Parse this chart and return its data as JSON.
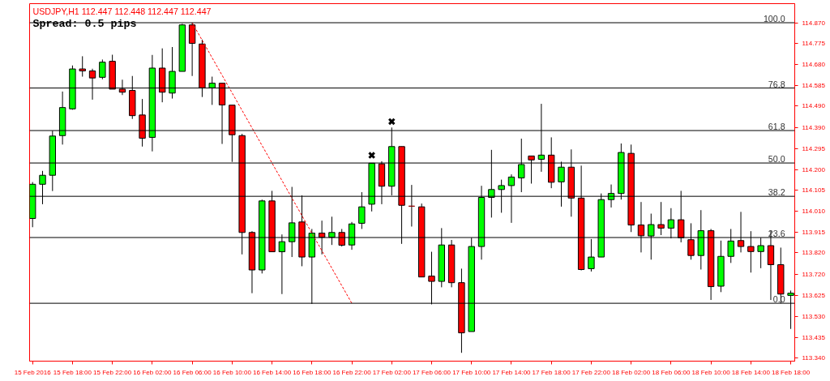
{
  "chart_data": {
    "type": "candlestick",
    "annotations": [
      "USDJPY,H1  112.447 112.448 112.447 112.447",
      "Spread: 0.5 pips",
      {
        "text": "100.0",
        "x": "2016-02-18T18:00",
        "y": 114.87
      },
      {
        "text": "76.8",
        "x": "2016-02-18T18:00",
        "y": 114.572
      },
      {
        "text": "61.8",
        "x": "2016-02-18T18:00",
        "y": 114.378
      },
      {
        "text": "50.0",
        "x": "2016-02-18T18:00",
        "y": 114.23
      },
      {
        "text": "38.2",
        "x": "2016-02-18T18:00",
        "y": 114.078
      },
      {
        "text": "23.6",
        "x": "2016-02-18T18:00",
        "y": 113.89
      },
      {
        "text": "0.0",
        "x": "2016-02-18T18:00",
        "y": 113.59
      }
    ],
    "x": [
      "2016-02-15T14:00",
      "2016-02-15T15:00",
      "2016-02-15T16:00",
      "2016-02-15T17:00",
      "2016-02-15T18:00",
      "2016-02-15T19:00",
      "2016-02-15T20:00",
      "2016-02-15T21:00",
      "2016-02-15T22:00",
      "2016-02-15T23:00",
      "2016-02-16T00:00",
      "2016-02-16T01:00",
      "2016-02-16T02:00",
      "2016-02-16T03:00",
      "2016-02-16T04:00",
      "2016-02-16T05:00",
      "2016-02-16T06:00",
      "2016-02-16T07:00",
      "2016-02-16T08:00",
      "2016-02-16T09:00",
      "2016-02-16T10:00",
      "2016-02-16T11:00",
      "2016-02-16T12:00",
      "2016-02-16T13:00",
      "2016-02-16T14:00",
      "2016-02-16T15:00",
      "2016-02-16T16:00",
      "2016-02-16T17:00",
      "2016-02-16T18:00",
      "2016-02-16T19:00",
      "2016-02-16T20:00",
      "2016-02-16T21:00",
      "2016-02-16T22:00",
      "2016-02-16T23:00",
      "2016-02-17T00:00",
      "2016-02-17T01:00",
      "2016-02-17T02:00",
      "2016-02-17T03:00",
      "2016-02-17T04:00",
      "2016-02-17T05:00",
      "2016-02-17T06:00",
      "2016-02-17T07:00",
      "2016-02-17T08:00",
      "2016-02-17T09:00",
      "2016-02-17T10:00",
      "2016-02-17T11:00",
      "2016-02-17T12:00",
      "2016-02-17T13:00",
      "2016-02-17T14:00",
      "2016-02-17T15:00",
      "2016-02-17T16:00",
      "2016-02-17T17:00",
      "2016-02-17T18:00",
      "2016-02-17T19:00",
      "2016-02-17T20:00",
      "2016-02-17T21:00",
      "2016-02-17T22:00",
      "2016-02-17T23:00",
      "2016-02-18T00:00",
      "2016-02-18T01:00",
      "2016-02-18T02:00",
      "2016-02-18T03:00",
      "2016-02-18T04:00",
      "2016-02-18T05:00",
      "2016-02-18T06:00",
      "2016-02-18T07:00",
      "2016-02-18T08:00",
      "2016-02-18T09:00",
      "2016-02-18T10:00",
      "2016-02-18T11:00",
      "2016-02-18T12:00",
      "2016-02-18T13:00",
      "2016-02-18T14:00",
      "2016-02-18T15:00",
      "2016-02-18T16:00",
      "2016-02-18T17:00",
      "2016-02-18T18:00"
    ],
    "ohlc": [
      [
        113.977,
        114.143,
        113.937,
        114.133
      ],
      [
        114.133,
        114.194,
        114.042,
        114.174
      ],
      [
        114.174,
        114.377,
        114.102,
        114.353
      ],
      [
        114.355,
        114.556,
        114.314,
        114.483
      ],
      [
        114.477,
        114.675,
        114.473,
        114.659
      ],
      [
        114.659,
        114.717,
        114.624,
        114.65
      ],
      [
        114.65,
        114.66,
        114.519,
        114.618
      ],
      [
        114.621,
        114.702,
        114.612,
        114.69
      ],
      [
        114.694,
        114.724,
        114.567,
        114.567
      ],
      [
        114.567,
        114.61,
        114.54,
        114.553
      ],
      [
        114.561,
        114.627,
        114.431,
        114.446
      ],
      [
        114.449,
        114.522,
        114.305,
        114.343
      ],
      [
        114.347,
        114.723,
        114.283,
        114.663
      ],
      [
        114.663,
        114.753,
        114.507,
        114.553
      ],
      [
        114.549,
        114.759,
        114.524,
        114.648
      ],
      [
        114.648,
        114.865,
        114.648,
        114.86
      ],
      [
        114.86,
        114.87,
        114.627,
        114.776
      ],
      [
        114.773,
        114.793,
        114.531,
        114.573
      ],
      [
        114.573,
        114.624,
        114.495,
        114.594
      ],
      [
        114.594,
        114.594,
        114.317,
        114.495
      ],
      [
        114.494,
        114.494,
        114.235,
        114.359
      ],
      [
        114.355,
        114.363,
        113.813,
        113.913
      ],
      [
        113.913,
        113.919,
        113.636,
        113.742
      ],
      [
        113.742,
        114.063,
        113.726,
        114.057
      ],
      [
        114.057,
        114.103,
        113.825,
        113.825
      ],
      [
        113.825,
        113.904,
        113.632,
        113.871
      ],
      [
        113.871,
        114.121,
        113.801,
        113.957
      ],
      [
        113.961,
        114.082,
        113.759,
        113.801
      ],
      [
        113.801,
        113.929,
        113.587,
        113.91
      ],
      [
        113.91,
        113.967,
        113.813,
        113.891
      ],
      [
        113.891,
        113.985,
        113.856,
        113.913
      ],
      [
        113.913,
        113.929,
        113.849,
        113.855
      ],
      [
        113.856,
        113.961,
        113.834,
        113.952
      ],
      [
        113.955,
        114.097,
        113.929,
        114.03
      ],
      [
        114.042,
        114.229,
        114.009,
        114.229
      ],
      [
        114.226,
        114.238,
        114.042,
        114.124
      ],
      [
        114.124,
        114.392,
        114.082,
        114.305
      ],
      [
        114.305,
        114.305,
        113.861,
        114.037
      ],
      [
        114.033,
        114.13,
        113.94,
        114.033
      ],
      [
        114.03,
        114.045,
        113.71,
        113.71
      ],
      [
        113.714,
        113.825,
        113.585,
        113.69
      ],
      [
        113.69,
        113.933,
        113.663,
        113.856
      ],
      [
        113.856,
        113.879,
        113.663,
        113.684
      ],
      [
        113.684,
        113.748,
        113.364,
        113.455
      ],
      [
        113.461,
        113.889,
        113.461,
        113.849
      ],
      [
        113.849,
        114.126,
        113.789,
        114.073
      ],
      [
        114.073,
        114.29,
        113.981,
        114.109
      ],
      [
        114.109,
        114.154,
        114.003,
        114.127
      ],
      [
        114.127,
        114.178,
        113.957,
        114.166
      ],
      [
        114.162,
        114.341,
        114.097,
        114.223
      ],
      [
        114.262,
        114.262,
        114.136,
        114.244
      ],
      [
        114.247,
        114.5,
        114.19,
        114.266
      ],
      [
        114.266,
        114.347,
        114.115,
        114.142
      ],
      [
        114.144,
        114.236,
        114.031,
        114.211
      ],
      [
        114.211,
        114.292,
        113.985,
        114.07
      ],
      [
        114.07,
        114.218,
        113.74,
        113.744
      ],
      [
        113.748,
        113.883,
        113.735,
        113.801
      ],
      [
        113.801,
        114.091,
        113.801,
        114.063
      ],
      [
        114.063,
        114.132,
        114.027,
        114.091
      ],
      [
        114.091,
        114.319,
        114.063,
        114.278
      ],
      [
        114.274,
        114.314,
        113.915,
        113.947
      ],
      [
        113.947,
        114.052,
        113.822,
        113.898
      ],
      [
        113.897,
        113.999,
        113.789,
        113.949
      ],
      [
        113.949,
        114.052,
        113.901,
        113.933
      ],
      [
        113.933,
        114.024,
        113.886,
        113.971
      ],
      [
        113.971,
        114.103,
        113.868,
        113.889
      ],
      [
        113.88,
        113.955,
        113.789,
        113.808
      ],
      [
        113.808,
        114.015,
        113.744,
        113.921
      ],
      [
        113.921,
        113.929,
        113.605,
        113.666
      ],
      [
        113.668,
        113.876,
        113.641,
        113.804
      ],
      [
        113.804,
        113.929,
        113.774,
        113.874
      ],
      [
        113.876,
        114.007,
        113.822,
        113.849
      ],
      [
        113.849,
        113.919,
        113.73,
        113.826
      ],
      [
        113.826,
        113.889,
        113.75,
        113.853
      ],
      [
        113.853,
        113.921,
        113.605,
        113.766
      ],
      [
        113.766,
        113.844,
        113.59,
        113.632
      ],
      [
        113.626,
        113.648,
        113.473,
        113.636
      ]
    ],
    "colors": [
      "#00ff00",
      "#00ff00",
      "#00ff00",
      "#00ff00",
      "#00ff00",
      "#ff0000",
      "#ff0000",
      "#00ff00",
      "#ff0000",
      "#ff0000",
      "#ff0000",
      "#ff0000",
      "#00ff00",
      "#ff0000",
      "#00ff00",
      "#00ff00",
      "#ff0000",
      "#ff0000",
      "#00ff00",
      "#ff0000",
      "#ff0000",
      "#ff0000",
      "#ff0000",
      "#00ff00",
      "#ff0000",
      "#00ff00",
      "#00ff00",
      "#ff0000",
      "#00ff00",
      "#ff0000",
      "#00ff00",
      "#ff0000",
      "#00ff00",
      "#00ff00",
      "#00ff00",
      "#ff0000",
      "#00ff00",
      "#ff0000",
      "#8b0000",
      "#ff0000",
      "#ff0000",
      "#00ff00",
      "#ff0000",
      "#ff0000",
      "#00ff00",
      "#00ff00",
      "#00ff00",
      "#00ff00",
      "#00ff00",
      "#00ff00",
      "#ff0000",
      "#00ff00",
      "#ff0000",
      "#00ff00",
      "#ff0000",
      "#ff0000",
      "#00ff00",
      "#00ff00",
      "#00ff00",
      "#00ff00",
      "#ff0000",
      "#ff0000",
      "#00ff00",
      "#ff0000",
      "#00ff00",
      "#ff0000",
      "#ff0000",
      "#00ff00",
      "#ff0000",
      "#00ff00",
      "#00ff00",
      "#ff0000",
      "#ff0000",
      "#00ff00",
      "#ff0000",
      "#ff0000",
      "#00ff00"
    ],
    "xlim": [
      "2016-02-15T13:42",
      "2016-02-18T18:24"
    ],
    "xticks": [
      {
        "value": "2016-02-15T14:00",
        "label": "15 Feb 2016"
      },
      {
        "value": "2016-02-15T18:00",
        "label": "15 Feb 18:00"
      },
      {
        "value": "2016-02-15T22:00",
        "label": "15 Feb 22:00"
      },
      {
        "value": "2016-02-16T02:00",
        "label": "16 Feb 02:00"
      },
      {
        "value": "2016-02-16T06:00",
        "label": "16 Feb 06:00"
      },
      {
        "value": "2016-02-16T10:00",
        "label": "16 Feb 10:00"
      },
      {
        "value": "2016-02-16T14:00",
        "label": "16 Feb 14:00"
      },
      {
        "value": "2016-02-16T18:00",
        "label": "16 Feb 18:00"
      },
      {
        "value": "2016-02-16T22:00",
        "label": "16 Feb 22:00"
      },
      {
        "value": "2016-02-17T02:00",
        "label": "17 Feb 02:00"
      },
      {
        "value": "2016-02-17T06:00",
        "label": "17 Feb 06:00"
      },
      {
        "value": "2016-02-17T10:00",
        "label": "17 Feb 10:00"
      },
      {
        "value": "2016-02-17T14:00",
        "label": "17 Feb 14:00"
      },
      {
        "value": "2016-02-17T18:00",
        "label": "17 Feb 18:00"
      },
      {
        "value": "2016-02-17T22:00",
        "label": "17 Feb 22:00"
      },
      {
        "value": "2016-02-18T02:00",
        "label": "18 Feb 02:00"
      },
      {
        "value": "2016-02-18T06:00",
        "label": "18 Feb 06:00"
      },
      {
        "value": "2016-02-18T10:00",
        "label": "18 Feb 10:00"
      },
      {
        "value": "2016-02-18T14:00",
        "label": "18 Feb 14:00"
      },
      {
        "value": "2016-02-18T18:00",
        "label": "18 Feb 18:00"
      }
    ],
    "ylim": [
      113.326,
      114.957
    ],
    "yticks": [
      {
        "value": 114.87,
        "label": "114.870"
      },
      {
        "value": 114.775,
        "label": "114.775"
      },
      {
        "value": 114.68,
        "label": "114.680"
      },
      {
        "value": 114.585,
        "label": "114.585"
      },
      {
        "value": 114.49,
        "label": "114.490"
      },
      {
        "value": 114.39,
        "label": "114.390"
      },
      {
        "value": 114.295,
        "label": "114.295"
      },
      {
        "value": 114.2,
        "label": "114.200"
      },
      {
        "value": 114.105,
        "label": "114.105"
      },
      {
        "value": 114.01,
        "label": "114.010"
      },
      {
        "value": 113.915,
        "label": "113.915"
      },
      {
        "value": 113.82,
        "label": "113.820"
      },
      {
        "value": 113.72,
        "label": "113.720"
      },
      {
        "value": 113.625,
        "label": "113.625"
      },
      {
        "value": 113.53,
        "label": "113.530"
      },
      {
        "value": 113.435,
        "label": "113.435"
      },
      {
        "value": 113.34,
        "label": "113.340"
      }
    ],
    "ref_lines": [
      {
        "axis": "y",
        "value": 114.87,
        "color": "#000000"
      },
      {
        "axis": "y",
        "value": 114.572,
        "color": "#000000"
      },
      {
        "axis": "y",
        "value": 114.378,
        "color": "#000000"
      },
      {
        "axis": "y",
        "value": 114.23,
        "color": "#000000"
      },
      {
        "axis": "y",
        "value": 114.078,
        "color": "#000000"
      },
      {
        "axis": "y",
        "value": 113.89,
        "color": "#000000"
      },
      {
        "axis": "y",
        "value": 113.59,
        "color": "#000000"
      }
    ],
    "series": [
      {
        "type": "line",
        "x": [
          "2016-02-16T06:00",
          "2016-02-16T22:00"
        ],
        "values": [
          114.87,
          113.59
        ],
        "color": "#ff0000",
        "line_style": "dotted"
      },
      {
        "type": "scatter",
        "x": [
          "2016-02-17T00:00",
          "2016-02-17T02:00"
        ],
        "values": [
          114.265,
          114.419
        ],
        "color": "#000000",
        "marker": "cross"
      }
    ]
  }
}
